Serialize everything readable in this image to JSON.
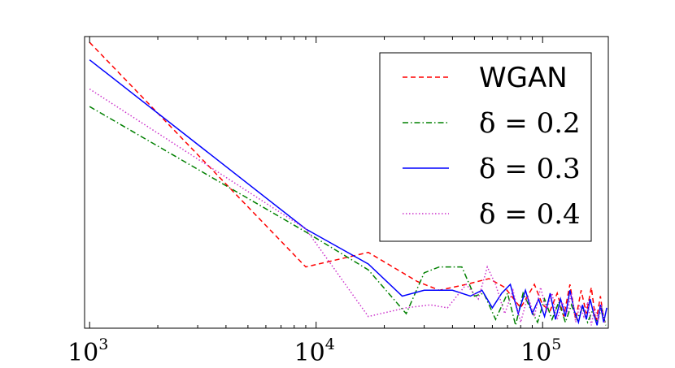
{
  "chart_data": {
    "type": "line",
    "x_scale": "log",
    "xlim": [
      950,
      195000
    ],
    "ylim": [
      0,
      1
    ],
    "grid": false,
    "legend_position": "upper-right",
    "x_ticks": [
      {
        "value": 1000,
        "base": "10",
        "exp": "3"
      },
      {
        "value": 10000,
        "base": "10",
        "exp": "4"
      },
      {
        "value": 100000,
        "base": "10",
        "exp": "5"
      }
    ],
    "series": [
      {
        "name": "WGAN",
        "legend_style": "text",
        "color": "#ff0000",
        "style": "dashed",
        "x": [
          1000,
          9000,
          17000,
          28000,
          35000,
          46000,
          58000,
          68000,
          80000,
          92000,
          100000,
          108000,
          116000,
          124000,
          132000,
          140000,
          148000,
          156000,
          164000,
          172000,
          180000,
          186000,
          192000
        ],
        "y": [
          0.98,
          0.21,
          0.26,
          0.16,
          0.13,
          0.15,
          0.17,
          0.14,
          0.07,
          0.15,
          0.08,
          0.06,
          0.12,
          0.04,
          0.15,
          0.03,
          0.13,
          0.05,
          0.14,
          0.02,
          0.11,
          0.03,
          0.01
        ]
      },
      {
        "name": "δ = 0.2",
        "legend_style": "math",
        "color": "#008000",
        "style": "dashdot",
        "x": [
          1000,
          9000,
          17000,
          25000,
          30000,
          35000,
          44000,
          50000,
          55000,
          62000,
          70000,
          76000,
          82000,
          88000,
          95000,
          102000,
          110000,
          118000,
          126000,
          134000,
          142000,
          150000,
          158000,
          166000,
          174000,
          182000,
          190000
        ],
        "y": [
          0.76,
          0.33,
          0.2,
          0.05,
          0.19,
          0.21,
          0.21,
          0.11,
          0.12,
          0.03,
          0.12,
          0.01,
          0.12,
          0.07,
          0.02,
          0.1,
          0.03,
          0.09,
          0.02,
          0.08,
          0.03,
          0.07,
          0.02,
          0.06,
          0.02,
          0.07,
          0.01
        ]
      },
      {
        "name": "δ = 0.3",
        "legend_style": "math",
        "color": "#0000ff",
        "style": "solid",
        "x": [
          1000,
          9000,
          17000,
          24000,
          30000,
          40000,
          48000,
          54000,
          60000,
          66000,
          72000,
          78000,
          84000,
          90000,
          96000,
          102000,
          108000,
          114000,
          120000,
          126000,
          132000,
          138000,
          144000,
          150000,
          156000,
          162000,
          168000,
          174000,
          180000,
          186000,
          192000
        ],
        "y": [
          0.92,
          0.34,
          0.22,
          0.11,
          0.13,
          0.13,
          0.11,
          0.13,
          0.07,
          0.12,
          0.15,
          0.05,
          0.13,
          0.05,
          0.1,
          0.04,
          0.12,
          0.03,
          0.1,
          0.04,
          0.13,
          0.06,
          0.02,
          0.08,
          0.03,
          0.1,
          0.05,
          0.01,
          0.08,
          0.02,
          0.07
        ]
      },
      {
        "name": "δ = 0.4",
        "legend_style": "math",
        "color": "#cc33cc",
        "style": "dotted",
        "x": [
          1000,
          9000,
          17000,
          25000,
          32000,
          38000,
          46000,
          52000,
          57000,
          62000,
          68000,
          74000,
          80000,
          86000,
          92000,
          98000,
          104000,
          110000,
          116000,
          122000,
          128000,
          134000,
          140000,
          146000,
          152000,
          158000,
          164000,
          170000,
          176000,
          182000,
          188000
        ],
        "y": [
          0.82,
          0.34,
          0.04,
          0.07,
          0.08,
          0.07,
          0.15,
          0.1,
          0.21,
          0.15,
          0.05,
          0.13,
          0.02,
          0.11,
          0.04,
          0.14,
          0.06,
          0.12,
          0.03,
          0.09,
          0.05,
          0.12,
          0.02,
          0.08,
          0.04,
          0.09,
          0.01,
          0.07,
          0.03,
          0.08,
          0.02
        ]
      }
    ]
  }
}
